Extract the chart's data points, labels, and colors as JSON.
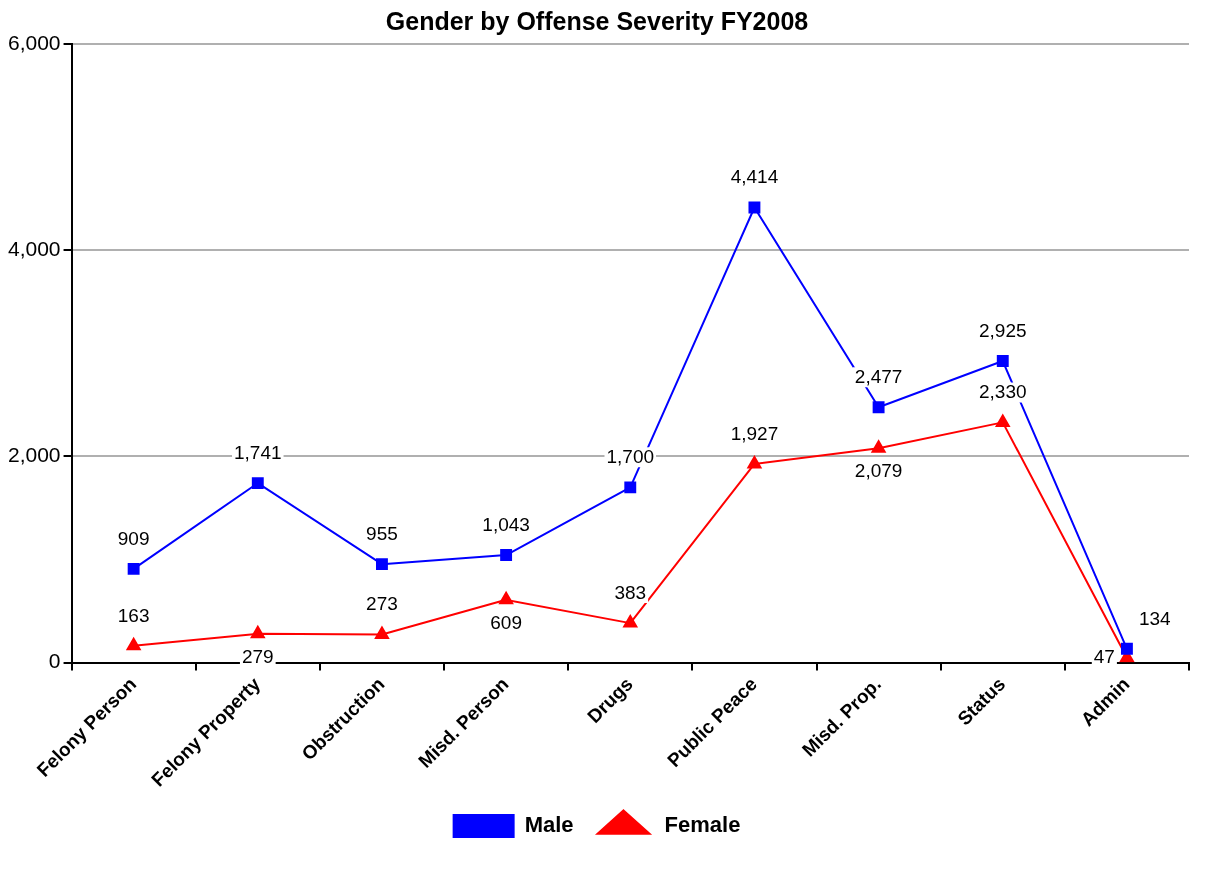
{
  "chart_data": {
    "type": "line",
    "title": "Gender by Offense Severity FY2008",
    "categories": [
      "Felony Person",
      "Felony Property",
      "Obstruction",
      "Misd. Person",
      "Drugs",
      "Public Peace",
      "Misd. Prop.",
      "Status",
      "Admin"
    ],
    "series": [
      {
        "name": "Male",
        "color": "#0000ff",
        "marker": "square",
        "values": [
          909,
          1741,
          955,
          1043,
          1700,
          4414,
          2477,
          2925,
          134
        ],
        "value_labels": [
          "909",
          "1,741",
          "955",
          "1,043",
          "1,700",
          "4,414",
          "2,477",
          "2,925",
          "134"
        ]
      },
      {
        "name": "Female",
        "color": "#ff0000",
        "marker": "triangle",
        "values": [
          163,
          279,
          273,
          609,
          383,
          1927,
          2079,
          2330,
          47
        ],
        "value_labels": [
          "163",
          "279",
          "273",
          "609",
          "383",
          "1,927",
          "2,079",
          "2,330",
          "47"
        ]
      }
    ],
    "ylim": [
      0,
      6000
    ],
    "yticks": [
      0,
      {
        "value": 2000,
        "label": "2,000"
      },
      {
        "value": 4000,
        "label": "4,000"
      },
      {
        "value": 6000,
        "label": "6,000"
      }
    ],
    "grid": "y",
    "legend": "bottom",
    "line_style": "solid"
  }
}
